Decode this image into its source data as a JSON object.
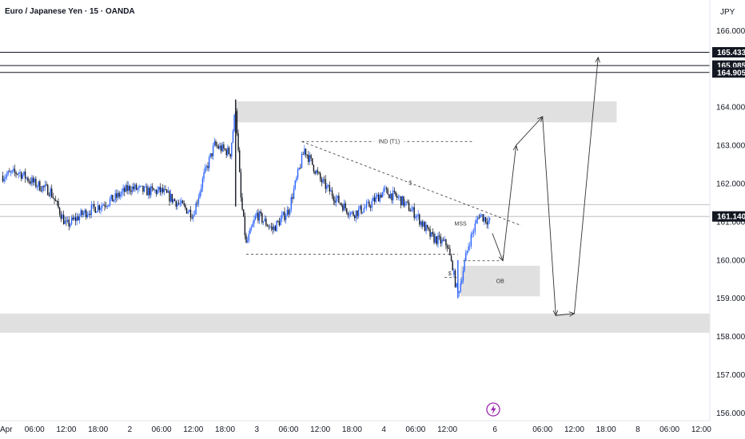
{
  "header": {
    "title": "Euro / Japanese Yen · 15 · OANDA",
    "currency": "JPY"
  },
  "colors": {
    "candle_up": "#2962ff",
    "candle_down": "#131722",
    "zone": "#e0e0e0",
    "line": "#131722"
  },
  "chart_data": {
    "type": "candlestick",
    "title": "Euro / Japanese Yen · 15 · OANDA",
    "ylim": [
      155.8,
      166.8
    ],
    "y_ticks": [
      "166.000",
      "165.000",
      "164.000",
      "163.000",
      "162.000",
      "161.000",
      "160.000",
      "159.000",
      "158.000",
      "157.000",
      "156.000"
    ],
    "x_ticks": [
      {
        "label": "Apr",
        "t": 0
      },
      {
        "label": "06:00",
        "t": 6
      },
      {
        "label": "12:00",
        "t": 12
      },
      {
        "label": "18:00",
        "t": 18
      },
      {
        "label": "2",
        "t": 24
      },
      {
        "label": "06:00",
        "t": 30
      },
      {
        "label": "12:00",
        "t": 36
      },
      {
        "label": "18:00",
        "t": 42
      },
      {
        "label": "3",
        "t": 48
      },
      {
        "label": "06:00",
        "t": 54
      },
      {
        "label": "12:00",
        "t": 60
      },
      {
        "label": "18:00",
        "t": 66
      },
      {
        "label": "4",
        "t": 72
      },
      {
        "label": "06:00",
        "t": 78
      },
      {
        "label": "12:00",
        "t": 84
      },
      {
        "label": "6",
        "t": 93
      },
      {
        "label": "06:00",
        "t": 102
      },
      {
        "label": "12:00",
        "t": 108
      },
      {
        "label": "18:00",
        "t": 114
      },
      {
        "label": "8",
        "t": 120
      },
      {
        "label": "06:00",
        "t": 126
      },
      {
        "label": "12:00",
        "t": 132
      }
    ],
    "price_path": [
      [
        0,
        162.2
      ],
      [
        3,
        162.3
      ],
      [
        6,
        162.0
      ],
      [
        9,
        161.8
      ],
      [
        12,
        160.9
      ],
      [
        15,
        161.2
      ],
      [
        18,
        161.4
      ],
      [
        21,
        161.6
      ],
      [
        24,
        161.9
      ],
      [
        27,
        161.8
      ],
      [
        30,
        161.8
      ],
      [
        33,
        161.5
      ],
      [
        36,
        161.2
      ],
      [
        38,
        162.2
      ],
      [
        40,
        163.0
      ],
      [
        43,
        162.8
      ],
      [
        44,
        164.0
      ],
      [
        45,
        161.6
      ],
      [
        46,
        160.4
      ],
      [
        48,
        161.2
      ],
      [
        51,
        160.8
      ],
      [
        54,
        161.3
      ],
      [
        57,
        162.9
      ],
      [
        60,
        162.1
      ],
      [
        63,
        161.6
      ],
      [
        66,
        161.2
      ],
      [
        69,
        161.4
      ],
      [
        72,
        161.8
      ],
      [
        75,
        161.6
      ],
      [
        78,
        161.2
      ],
      [
        81,
        160.6
      ],
      [
        84,
        160.4
      ],
      [
        86,
        159.1
      ],
      [
        88,
        160.4
      ],
      [
        90,
        161.2
      ],
      [
        92,
        161.0
      ]
    ],
    "levels": [
      {
        "label": "165.433",
        "y": 165.433
      },
      {
        "label": "165.085",
        "y": 165.085
      },
      {
        "label": "164.905",
        "y": 164.905
      },
      {
        "label": "161.140",
        "y": 161.14
      }
    ],
    "current_price_lines": [
      161.45,
      161.14
    ],
    "zones": [
      {
        "t0": 44,
        "t1": 116,
        "y0": 163.6,
        "y1": 164.15
      },
      {
        "t0": -1,
        "t1": 137,
        "y0": 158.1,
        "y1": 158.6
      },
      {
        "t0": 86.5,
        "t1": 101.5,
        "y0": 159.05,
        "y1": 159.85,
        "label": "OB"
      }
    ],
    "annotations": [
      {
        "text": "IND (T1)",
        "t": 73,
        "y": 163.05
      },
      {
        "text": "$",
        "t": 77,
        "y": 161.97
      },
      {
        "text": "MSS",
        "t": 86.5,
        "y": 160.9
      },
      {
        "text": "$",
        "t": 84.5,
        "y": 159.6
      }
    ],
    "dashed_lines": [
      {
        "t0": 56.5,
        "y0": 163.1,
        "t1": 89,
        "y1": 163.1
      },
      {
        "t0": 56.5,
        "y0": 163.1,
        "t1": 98,
        "y1": 160.9
      },
      {
        "t0": 46,
        "y0": 160.15,
        "t1": 86,
        "y1": 160.15
      },
      {
        "t0": 87,
        "y0": 159.98,
        "t1": 94,
        "y1": 159.98
      },
      {
        "t0": 83.5,
        "y0": 159.55,
        "t1": 86,
        "y1": 159.55
      }
    ],
    "projection_path": [
      [
        92.5,
        160.7
      ],
      [
        94.5,
        159.98
      ],
      [
        97,
        163.0
      ],
      [
        102,
        163.75
      ],
      [
        104.5,
        158.55
      ],
      [
        108,
        158.6
      ],
      [
        112.5,
        165.3
      ]
    ]
  }
}
